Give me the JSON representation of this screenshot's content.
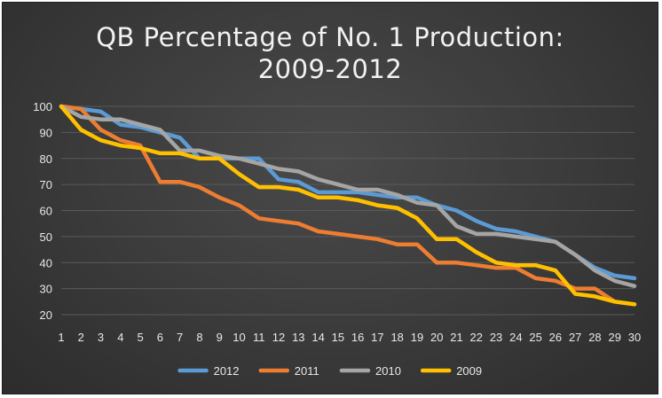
{
  "chart_data": {
    "type": "line",
    "title_line1": "QB Percentage of No. 1 Production:",
    "title_line2": "2009-2012",
    "xlabel": "",
    "ylabel": "",
    "x": [
      1,
      2,
      3,
      4,
      5,
      6,
      7,
      8,
      9,
      10,
      11,
      12,
      13,
      14,
      15,
      16,
      17,
      18,
      19,
      20,
      21,
      22,
      23,
      24,
      25,
      26,
      27,
      28,
      29,
      30
    ],
    "ylim": [
      20,
      100
    ],
    "yticks": [
      20,
      30,
      40,
      50,
      60,
      70,
      80,
      90,
      100
    ],
    "grid": true,
    "legend_position": "bottom",
    "series": [
      {
        "name": "2012",
        "color": "#5b9bd5",
        "values": [
          100,
          99,
          98,
          93,
          92,
          90,
          88,
          80,
          80,
          80,
          80,
          72,
          71,
          67,
          67,
          67,
          66,
          65,
          65,
          62,
          60,
          56,
          53,
          52,
          50,
          48,
          43,
          38,
          35,
          34
        ]
      },
      {
        "name": "2011",
        "color": "#ed7d31",
        "values": [
          100,
          99,
          91,
          87,
          85,
          71,
          71,
          69,
          65,
          62,
          57,
          56,
          55,
          52,
          51,
          50,
          49,
          47,
          47,
          40,
          40,
          39,
          38,
          38,
          34,
          33,
          30,
          30,
          25,
          24
        ]
      },
      {
        "name": "2010",
        "color": "#a5a5a5",
        "values": [
          100,
          96,
          95,
          95,
          93,
          91,
          83,
          83,
          81,
          80,
          78,
          76,
          75,
          72,
          70,
          68,
          68,
          66,
          63,
          62,
          54,
          51,
          51,
          50,
          49,
          48,
          43,
          37,
          33,
          31
        ]
      },
      {
        "name": "2009",
        "color": "#ffc000",
        "values": [
          100,
          91,
          87,
          85,
          84,
          82,
          82,
          80,
          80,
          74,
          69,
          69,
          68,
          65,
          65,
          64,
          62,
          61,
          57,
          49,
          49,
          44,
          40,
          39,
          39,
          37,
          28,
          27,
          25,
          24
        ]
      }
    ]
  }
}
